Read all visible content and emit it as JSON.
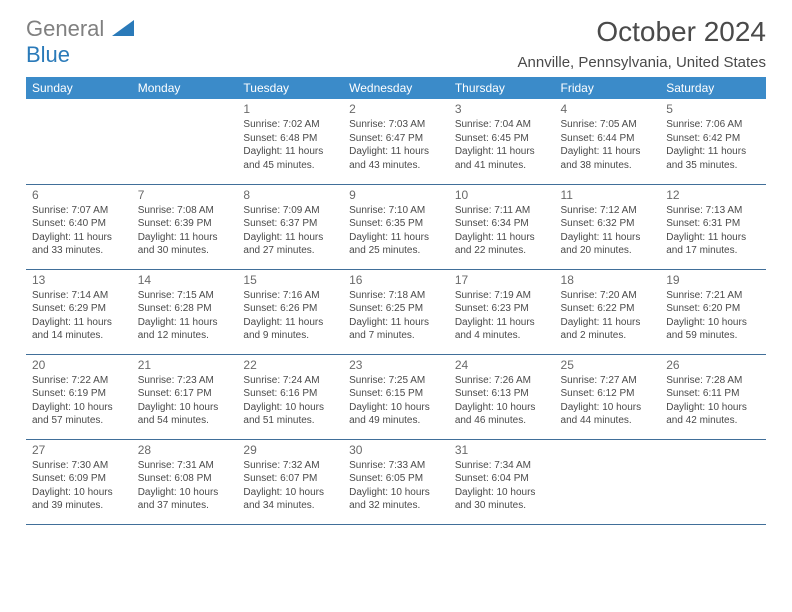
{
  "logo": {
    "word1": "General",
    "word2": "Blue"
  },
  "title": "October 2024",
  "location": "Annville, Pennsylvania, United States",
  "colors": {
    "header_bg": "#3b8bc9",
    "header_text": "#ffffff",
    "border": "#416f99",
    "body_text": "#4a4a4a",
    "logo_gray": "#808080",
    "logo_blue": "#2a7ab9"
  },
  "days_of_week": [
    "Sunday",
    "Monday",
    "Tuesday",
    "Wednesday",
    "Thursday",
    "Friday",
    "Saturday"
  ],
  "weeks": [
    [
      null,
      null,
      {
        "n": "1",
        "sr": "7:02 AM",
        "ss": "6:48 PM",
        "dl": "11 hours and 45 minutes."
      },
      {
        "n": "2",
        "sr": "7:03 AM",
        "ss": "6:47 PM",
        "dl": "11 hours and 43 minutes."
      },
      {
        "n": "3",
        "sr": "7:04 AM",
        "ss": "6:45 PM",
        "dl": "11 hours and 41 minutes."
      },
      {
        "n": "4",
        "sr": "7:05 AM",
        "ss": "6:44 PM",
        "dl": "11 hours and 38 minutes."
      },
      {
        "n": "5",
        "sr": "7:06 AM",
        "ss": "6:42 PM",
        "dl": "11 hours and 35 minutes."
      }
    ],
    [
      {
        "n": "6",
        "sr": "7:07 AM",
        "ss": "6:40 PM",
        "dl": "11 hours and 33 minutes."
      },
      {
        "n": "7",
        "sr": "7:08 AM",
        "ss": "6:39 PM",
        "dl": "11 hours and 30 minutes."
      },
      {
        "n": "8",
        "sr": "7:09 AM",
        "ss": "6:37 PM",
        "dl": "11 hours and 27 minutes."
      },
      {
        "n": "9",
        "sr": "7:10 AM",
        "ss": "6:35 PM",
        "dl": "11 hours and 25 minutes."
      },
      {
        "n": "10",
        "sr": "7:11 AM",
        "ss": "6:34 PM",
        "dl": "11 hours and 22 minutes."
      },
      {
        "n": "11",
        "sr": "7:12 AM",
        "ss": "6:32 PM",
        "dl": "11 hours and 20 minutes."
      },
      {
        "n": "12",
        "sr": "7:13 AM",
        "ss": "6:31 PM",
        "dl": "11 hours and 17 minutes."
      }
    ],
    [
      {
        "n": "13",
        "sr": "7:14 AM",
        "ss": "6:29 PM",
        "dl": "11 hours and 14 minutes."
      },
      {
        "n": "14",
        "sr": "7:15 AM",
        "ss": "6:28 PM",
        "dl": "11 hours and 12 minutes."
      },
      {
        "n": "15",
        "sr": "7:16 AM",
        "ss": "6:26 PM",
        "dl": "11 hours and 9 minutes."
      },
      {
        "n": "16",
        "sr": "7:18 AM",
        "ss": "6:25 PM",
        "dl": "11 hours and 7 minutes."
      },
      {
        "n": "17",
        "sr": "7:19 AM",
        "ss": "6:23 PM",
        "dl": "11 hours and 4 minutes."
      },
      {
        "n": "18",
        "sr": "7:20 AM",
        "ss": "6:22 PM",
        "dl": "11 hours and 2 minutes."
      },
      {
        "n": "19",
        "sr": "7:21 AM",
        "ss": "6:20 PM",
        "dl": "10 hours and 59 minutes."
      }
    ],
    [
      {
        "n": "20",
        "sr": "7:22 AM",
        "ss": "6:19 PM",
        "dl": "10 hours and 57 minutes."
      },
      {
        "n": "21",
        "sr": "7:23 AM",
        "ss": "6:17 PM",
        "dl": "10 hours and 54 minutes."
      },
      {
        "n": "22",
        "sr": "7:24 AM",
        "ss": "6:16 PM",
        "dl": "10 hours and 51 minutes."
      },
      {
        "n": "23",
        "sr": "7:25 AM",
        "ss": "6:15 PM",
        "dl": "10 hours and 49 minutes."
      },
      {
        "n": "24",
        "sr": "7:26 AM",
        "ss": "6:13 PM",
        "dl": "10 hours and 46 minutes."
      },
      {
        "n": "25",
        "sr": "7:27 AM",
        "ss": "6:12 PM",
        "dl": "10 hours and 44 minutes."
      },
      {
        "n": "26",
        "sr": "7:28 AM",
        "ss": "6:11 PM",
        "dl": "10 hours and 42 minutes."
      }
    ],
    [
      {
        "n": "27",
        "sr": "7:30 AM",
        "ss": "6:09 PM",
        "dl": "10 hours and 39 minutes."
      },
      {
        "n": "28",
        "sr": "7:31 AM",
        "ss": "6:08 PM",
        "dl": "10 hours and 37 minutes."
      },
      {
        "n": "29",
        "sr": "7:32 AM",
        "ss": "6:07 PM",
        "dl": "10 hours and 34 minutes."
      },
      {
        "n": "30",
        "sr": "7:33 AM",
        "ss": "6:05 PM",
        "dl": "10 hours and 32 minutes."
      },
      {
        "n": "31",
        "sr": "7:34 AM",
        "ss": "6:04 PM",
        "dl": "10 hours and 30 minutes."
      },
      null,
      null
    ]
  ],
  "labels": {
    "sunrise": "Sunrise: ",
    "sunset": "Sunset: ",
    "daylight": "Daylight: "
  }
}
